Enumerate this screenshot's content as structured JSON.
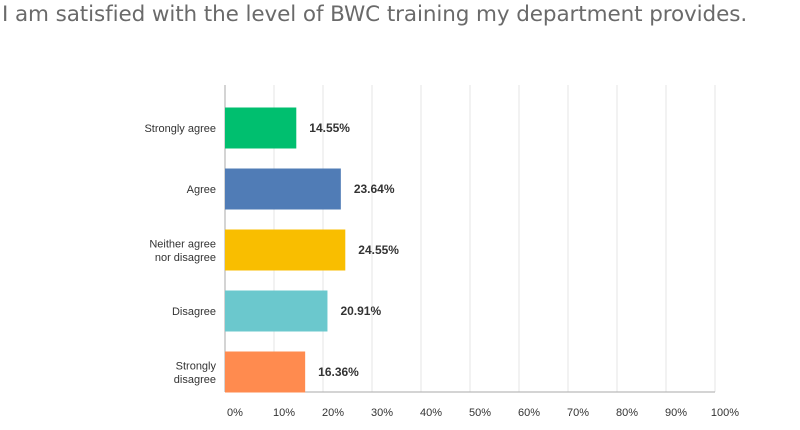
{
  "chart_data": {
    "type": "bar",
    "orientation": "horizontal",
    "title": "I am satisfied with the level of BWC training my department provides.",
    "categories": [
      [
        "Strongly agree"
      ],
      [
        "Agree"
      ],
      [
        "Neither agree",
        "nor disagree"
      ],
      [
        "Disagree"
      ],
      [
        "Strongly",
        "disagree"
      ]
    ],
    "values": [
      14.55,
      23.64,
      24.55,
      20.91,
      16.36
    ],
    "value_labels": [
      "14.55%",
      "23.64%",
      "24.55%",
      "20.91%",
      "16.36%"
    ],
    "colors": [
      "#00bf6f",
      "#507cb6",
      "#f9be00",
      "#6bc8cd",
      "#ff8b4f"
    ],
    "xlim": [
      0,
      100
    ],
    "xticks": [
      "0%",
      "10%",
      "20%",
      "30%",
      "40%",
      "50%",
      "60%",
      "70%",
      "80%",
      "90%",
      "100%"
    ],
    "grid": true,
    "gridline_color": "#e5e5e5",
    "axis_color": "#aaaaaa",
    "legend": "none"
  }
}
